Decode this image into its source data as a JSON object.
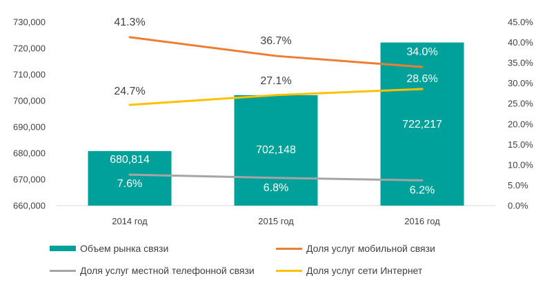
{
  "chart_data": {
    "type": "bar-line-combo",
    "categories": [
      "2014  год",
      "2015  год",
      "2016  год"
    ],
    "left_axis": {
      "min": 660000,
      "max": 730000,
      "step": 10000,
      "tick_labels": [
        "660,000",
        "670,000",
        "680,000",
        "690,000",
        "700,000",
        "710,000",
        "720,000",
        "730,000"
      ]
    },
    "right_axis": {
      "min": 0,
      "max": 45,
      "step": 5,
      "tick_labels": [
        "0.0%",
        "5.0%",
        "10.0%",
        "15.0%",
        "20.0%",
        "25.0%",
        "30.0%",
        "35.0%",
        "40.0%",
        "45.0%"
      ]
    },
    "bars": {
      "name": "Объем рынка связи",
      "color": "#00a19a",
      "values": [
        680814,
        702148,
        722217
      ],
      "labels": [
        "680,814",
        "702,148",
        "722,217"
      ]
    },
    "lines": [
      {
        "name": "Доля услуг мобильной связи",
        "color": "#ed7d31",
        "values": [
          41.3,
          36.7,
          34.0
        ],
        "labels": [
          "41.3%",
          "36.7%",
          "34.0%"
        ]
      },
      {
        "name": "Доля услуг сети Интернет",
        "color": "#ffc000",
        "values": [
          24.7,
          27.1,
          28.6
        ],
        "labels": [
          "24.7%",
          "27.1%",
          "28.6%"
        ]
      },
      {
        "name": "Доля услуг местной телефонной связи",
        "color": "#a5a5a5",
        "values": [
          7.6,
          6.8,
          6.2
        ],
        "labels": [
          "7.6%",
          "6.8%",
          "6.2%"
        ]
      }
    ]
  },
  "legend": {
    "bars": "Объем рынка связи",
    "mobile": "Доля услуг мобильной связи",
    "phone": "Доля услуг местной телефонной связи",
    "internet": "Доля услуг сети Интернет"
  }
}
